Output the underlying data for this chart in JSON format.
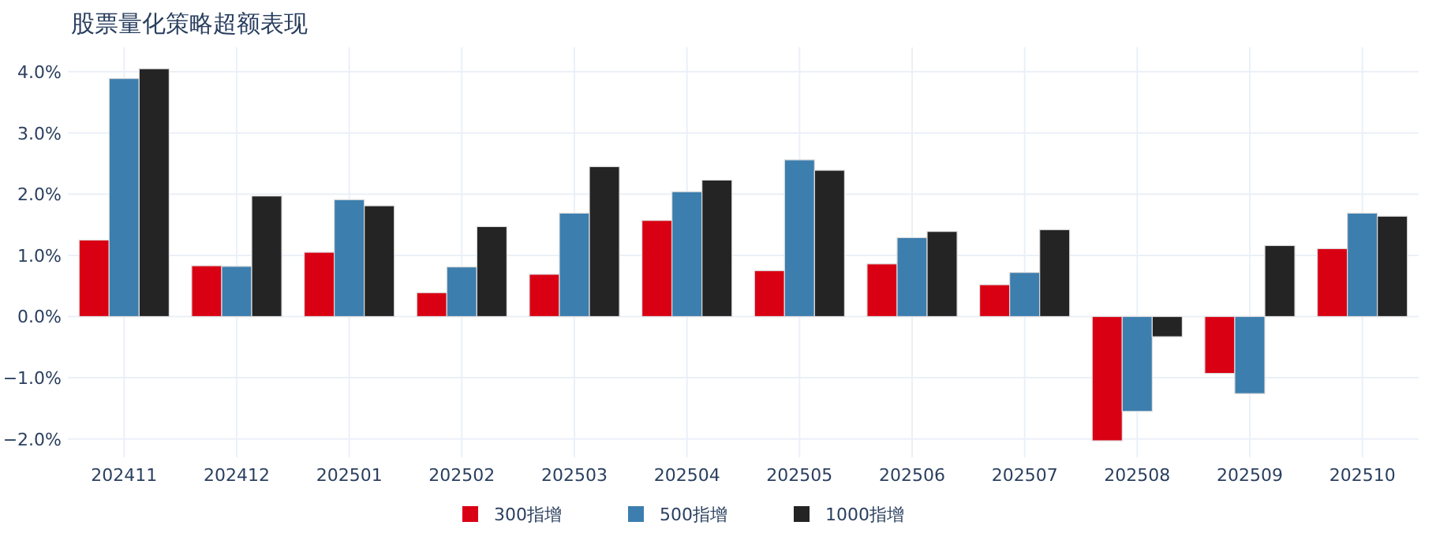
{
  "chart_data": {
    "type": "bar",
    "title": "股票量化策略超额表现",
    "categories": [
      "202411",
      "202412",
      "202501",
      "202502",
      "202503",
      "202504",
      "202505",
      "202506",
      "202507",
      "202508",
      "202509",
      "202510"
    ],
    "series": [
      {
        "name": "300指增",
        "color": "#d90013",
        "values": [
          1.25,
          0.83,
          1.05,
          0.39,
          0.69,
          1.57,
          0.75,
          0.86,
          0.52,
          -2.03,
          -0.93,
          1.11
        ]
      },
      {
        "name": "500指增",
        "color": "#3c7eae",
        "values": [
          3.89,
          0.82,
          1.91,
          0.81,
          1.69,
          2.04,
          2.56,
          1.29,
          0.72,
          -1.55,
          -1.26,
          1.69
        ]
      },
      {
        "name": "1000指增",
        "color": "#242424",
        "values": [
          4.05,
          1.97,
          1.81,
          1.47,
          2.45,
          2.23,
          2.39,
          1.39,
          1.42,
          -0.33,
          1.16,
          1.64
        ]
      }
    ],
    "ylim": [
      -2.3,
      4.4
    ],
    "yticks": [
      {
        "value": -2,
        "label": "−2.0%"
      },
      {
        "value": -1,
        "label": "−1.0%"
      },
      {
        "value": 0,
        "label": "0.0%"
      },
      {
        "value": 1,
        "label": "1.0%"
      },
      {
        "value": 2,
        "label": "2.0%"
      },
      {
        "value": 3,
        "label": "3.0%"
      },
      {
        "value": 4,
        "label": "4.0%"
      }
    ],
    "grid": true,
    "legend": "bottom"
  }
}
